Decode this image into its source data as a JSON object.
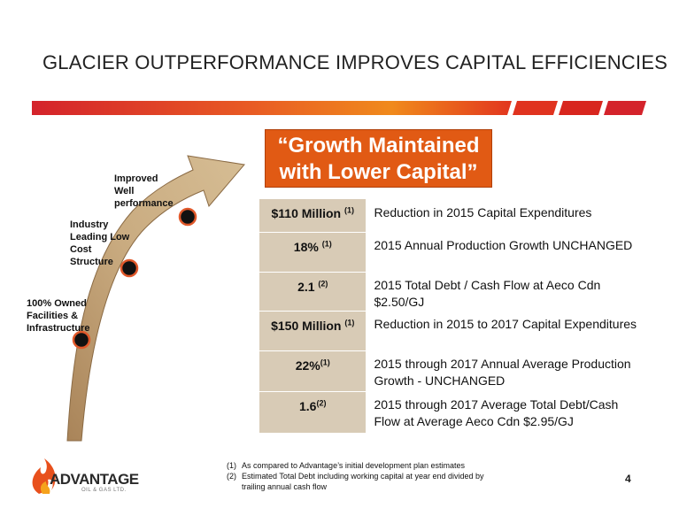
{
  "slide": {
    "title": "GLACIER OUTPERFORMANCE IMPROVES CAPITAL EFFICIENCIES",
    "page_number": "4"
  },
  "colors": {
    "band_red": "#d4232b",
    "band_orange": "#f08a1c",
    "callout_orange": "#e15a14",
    "arrow_fill": "#c7a97c",
    "metric_cell": "#d8cbb6"
  },
  "arrow_steps": [
    {
      "label": "100% Owned Facilities & Infrastructure"
    },
    {
      "label": "Industry Leading Low Cost Structure"
    },
    {
      "label": "Improved Well performance"
    }
  ],
  "callout": {
    "line1": "“Growth Maintained",
    "line2": "with Lower Capital”"
  },
  "metrics": [
    {
      "value": "$110 Million",
      "note": "(1)",
      "description": "Reduction in 2015 Capital Expenditures"
    },
    {
      "value": "18%",
      "note": "(1)",
      "description": "2015 Annual Production Growth UNCHANGED"
    },
    {
      "value": "2.1",
      "note": "(2)",
      "description": "2015 Total Debt / Cash Flow at Aeco Cdn $2.50/GJ"
    },
    {
      "value": "$150 Million",
      "note": "(1)",
      "description": "Reduction in 2015 to 2017 Capital Expenditures"
    },
    {
      "value": "22%",
      "note": "(1)",
      "description": "2015 through 2017 Annual Average Production Growth - UNCHANGED"
    },
    {
      "value": "1.6",
      "note": "(2)",
      "description": "2015 through 2017 Average Total Debt/Cash Flow at Average Aeco Cdn $2.95/GJ"
    }
  ],
  "footnotes": [
    {
      "num": "(1)",
      "text": "As compared to Advantage’s initial development plan estimates"
    },
    {
      "num": "(2)",
      "text": "Estimated Total Debt including working capital at year end divided by trailing annual cash flow"
    }
  ],
  "logo": {
    "name": "ADVANTAGE",
    "sub": "OIL & GAS LTD."
  }
}
